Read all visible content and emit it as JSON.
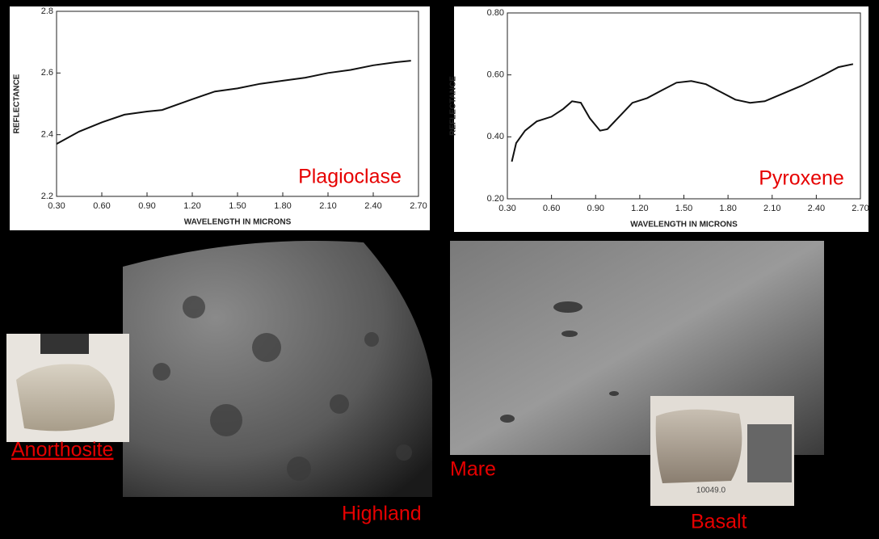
{
  "chart_data": [
    {
      "type": "line",
      "annotation": "Plagioclase",
      "ylabel": "REFLECTANCE",
      "xlabel": "WAVELENGTH IN MICRONS",
      "color": "#111111",
      "x": [
        0.3,
        0.45,
        0.6,
        0.75,
        0.9,
        1.0,
        1.2,
        1.35,
        1.5,
        1.65,
        1.8,
        1.95,
        2.1,
        2.25,
        2.4,
        2.55,
        2.65
      ],
      "values": [
        2.37,
        2.41,
        2.44,
        2.465,
        2.475,
        2.48,
        2.515,
        2.54,
        2.55,
        2.565,
        2.575,
        2.585,
        2.6,
        2.61,
        2.625,
        2.635,
        2.64
      ],
      "xlim": [
        0.3,
        2.7
      ],
      "ylim": [
        2.2,
        2.8
      ],
      "xticks": [
        {
          "value": 0.3,
          "label": "0.30"
        },
        {
          "value": 0.6,
          "label": "0.60"
        },
        {
          "value": 0.9,
          "label": "0.90"
        },
        {
          "value": 1.2,
          "label": "1.20"
        },
        {
          "value": 1.5,
          "label": "1.50"
        },
        {
          "value": 1.8,
          "label": "1.80"
        },
        {
          "value": 2.1,
          "label": "2.10"
        },
        {
          "value": 2.4,
          "label": "2.40"
        },
        {
          "value": 2.7,
          "label": "2.70"
        }
      ],
      "yticks": [
        2.2,
        2.4,
        2.6,
        2.8
      ]
    },
    {
      "type": "line",
      "annotation": "Pyroxene",
      "ylabel": "REFLECTANCE",
      "xlabel": "WAVELENGTH IN MICRONS",
      "color": "#111111",
      "x": [
        0.33,
        0.36,
        0.42,
        0.5,
        0.6,
        0.68,
        0.74,
        0.8,
        0.86,
        0.93,
        0.98,
        1.05,
        1.15,
        1.25,
        1.35,
        1.45,
        1.55,
        1.65,
        1.75,
        1.85,
        1.95,
        2.05,
        2.15,
        2.3,
        2.45,
        2.55,
        2.65
      ],
      "values": [
        0.32,
        0.38,
        0.42,
        0.45,
        0.465,
        0.49,
        0.515,
        0.51,
        0.46,
        0.42,
        0.425,
        0.46,
        0.51,
        0.525,
        0.55,
        0.575,
        0.58,
        0.57,
        0.545,
        0.52,
        0.51,
        0.515,
        0.535,
        0.565,
        0.6,
        0.625,
        0.635
      ],
      "xlim": [
        0.3,
        2.7
      ],
      "ylim": [
        0.2,
        0.8
      ],
      "xticks": [
        {
          "value": 0.3,
          "label": "0.30"
        },
        {
          "value": 0.6,
          "label": "0.60"
        },
        {
          "value": 0.9,
          "label": "0.90"
        },
        {
          "value": 1.2,
          "label": "1.20"
        },
        {
          "value": 1.5,
          "label": "1.50"
        },
        {
          "value": 1.8,
          "label": "1.80"
        },
        {
          "value": 2.1,
          "label": "2.10"
        },
        {
          "value": 2.4,
          "label": "2.40"
        },
        {
          "value": 2.7,
          "label": "2.70"
        }
      ],
      "yticks": [
        {
          "value": 0.2,
          "label": "0.20"
        },
        {
          "value": 0.4,
          "label": "0.40"
        },
        {
          "value": 0.6,
          "label": "0.60"
        },
        {
          "value": 0.8,
          "label": "0.80"
        }
      ]
    }
  ],
  "photos": {
    "anorthosite": "Anorthosite",
    "highland": "Highland",
    "mare": "Mare",
    "basalt": "Basalt",
    "sample_number": "10049.0"
  }
}
